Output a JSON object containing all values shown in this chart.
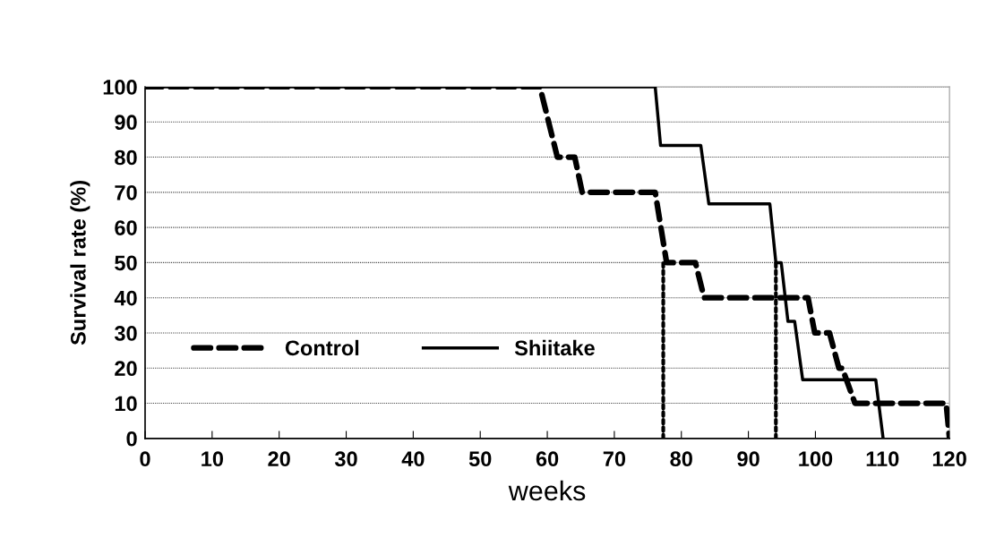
{
  "chart_data": {
    "type": "line",
    "xlabel": "weeks",
    "ylabel": "Survival rate (%)",
    "xlim": [
      0,
      120
    ],
    "xticks": [
      0,
      10,
      20,
      30,
      40,
      50,
      60,
      70,
      80,
      90,
      100,
      110,
      120
    ],
    "ylim": [
      0,
      100
    ],
    "yticks": [
      0,
      10,
      20,
      30,
      40,
      50,
      60,
      70,
      80,
      90,
      100
    ],
    "grid": "y",
    "legend": "lower left",
    "marker": "none",
    "series": [
      {
        "name": "Control",
        "color": "#000000",
        "line_style": "dashed",
        "x": [
          0,
          58.9,
          61.5,
          64.1,
          65.2,
          76.1,
          77.8,
          82.1,
          83.4,
          98.9,
          99.9,
          102.1,
          103.5,
          104,
          105.9,
          119.5,
          120
        ],
        "values": [
          100,
          100,
          80,
          80,
          70,
          70,
          50,
          50,
          40,
          40,
          30,
          30,
          20,
          20,
          10,
          10,
          0
        ]
      },
      {
        "name": "Shiitake",
        "color": "#000000",
        "line_style": "solid",
        "x": [
          0,
          76.1,
          76.9,
          82.9,
          84.1,
          93.2,
          94.1,
          94.9,
          95.9,
          96.9,
          98.1,
          109,
          110.1
        ],
        "values": [
          100,
          100,
          83.3,
          83.3,
          66.7,
          66.7,
          50,
          50,
          33.3,
          33.3,
          16.7,
          16.7,
          0
        ]
      },
      {
        "color": "#000000",
        "line_style": "dotted",
        "x": [
          77.3,
          77.3
        ],
        "values": [
          0,
          50
        ]
      },
      {
        "color": "#000000",
        "line_style": "dotted",
        "x": [
          94.1,
          94.1
        ],
        "values": [
          0,
          50
        ]
      }
    ]
  }
}
